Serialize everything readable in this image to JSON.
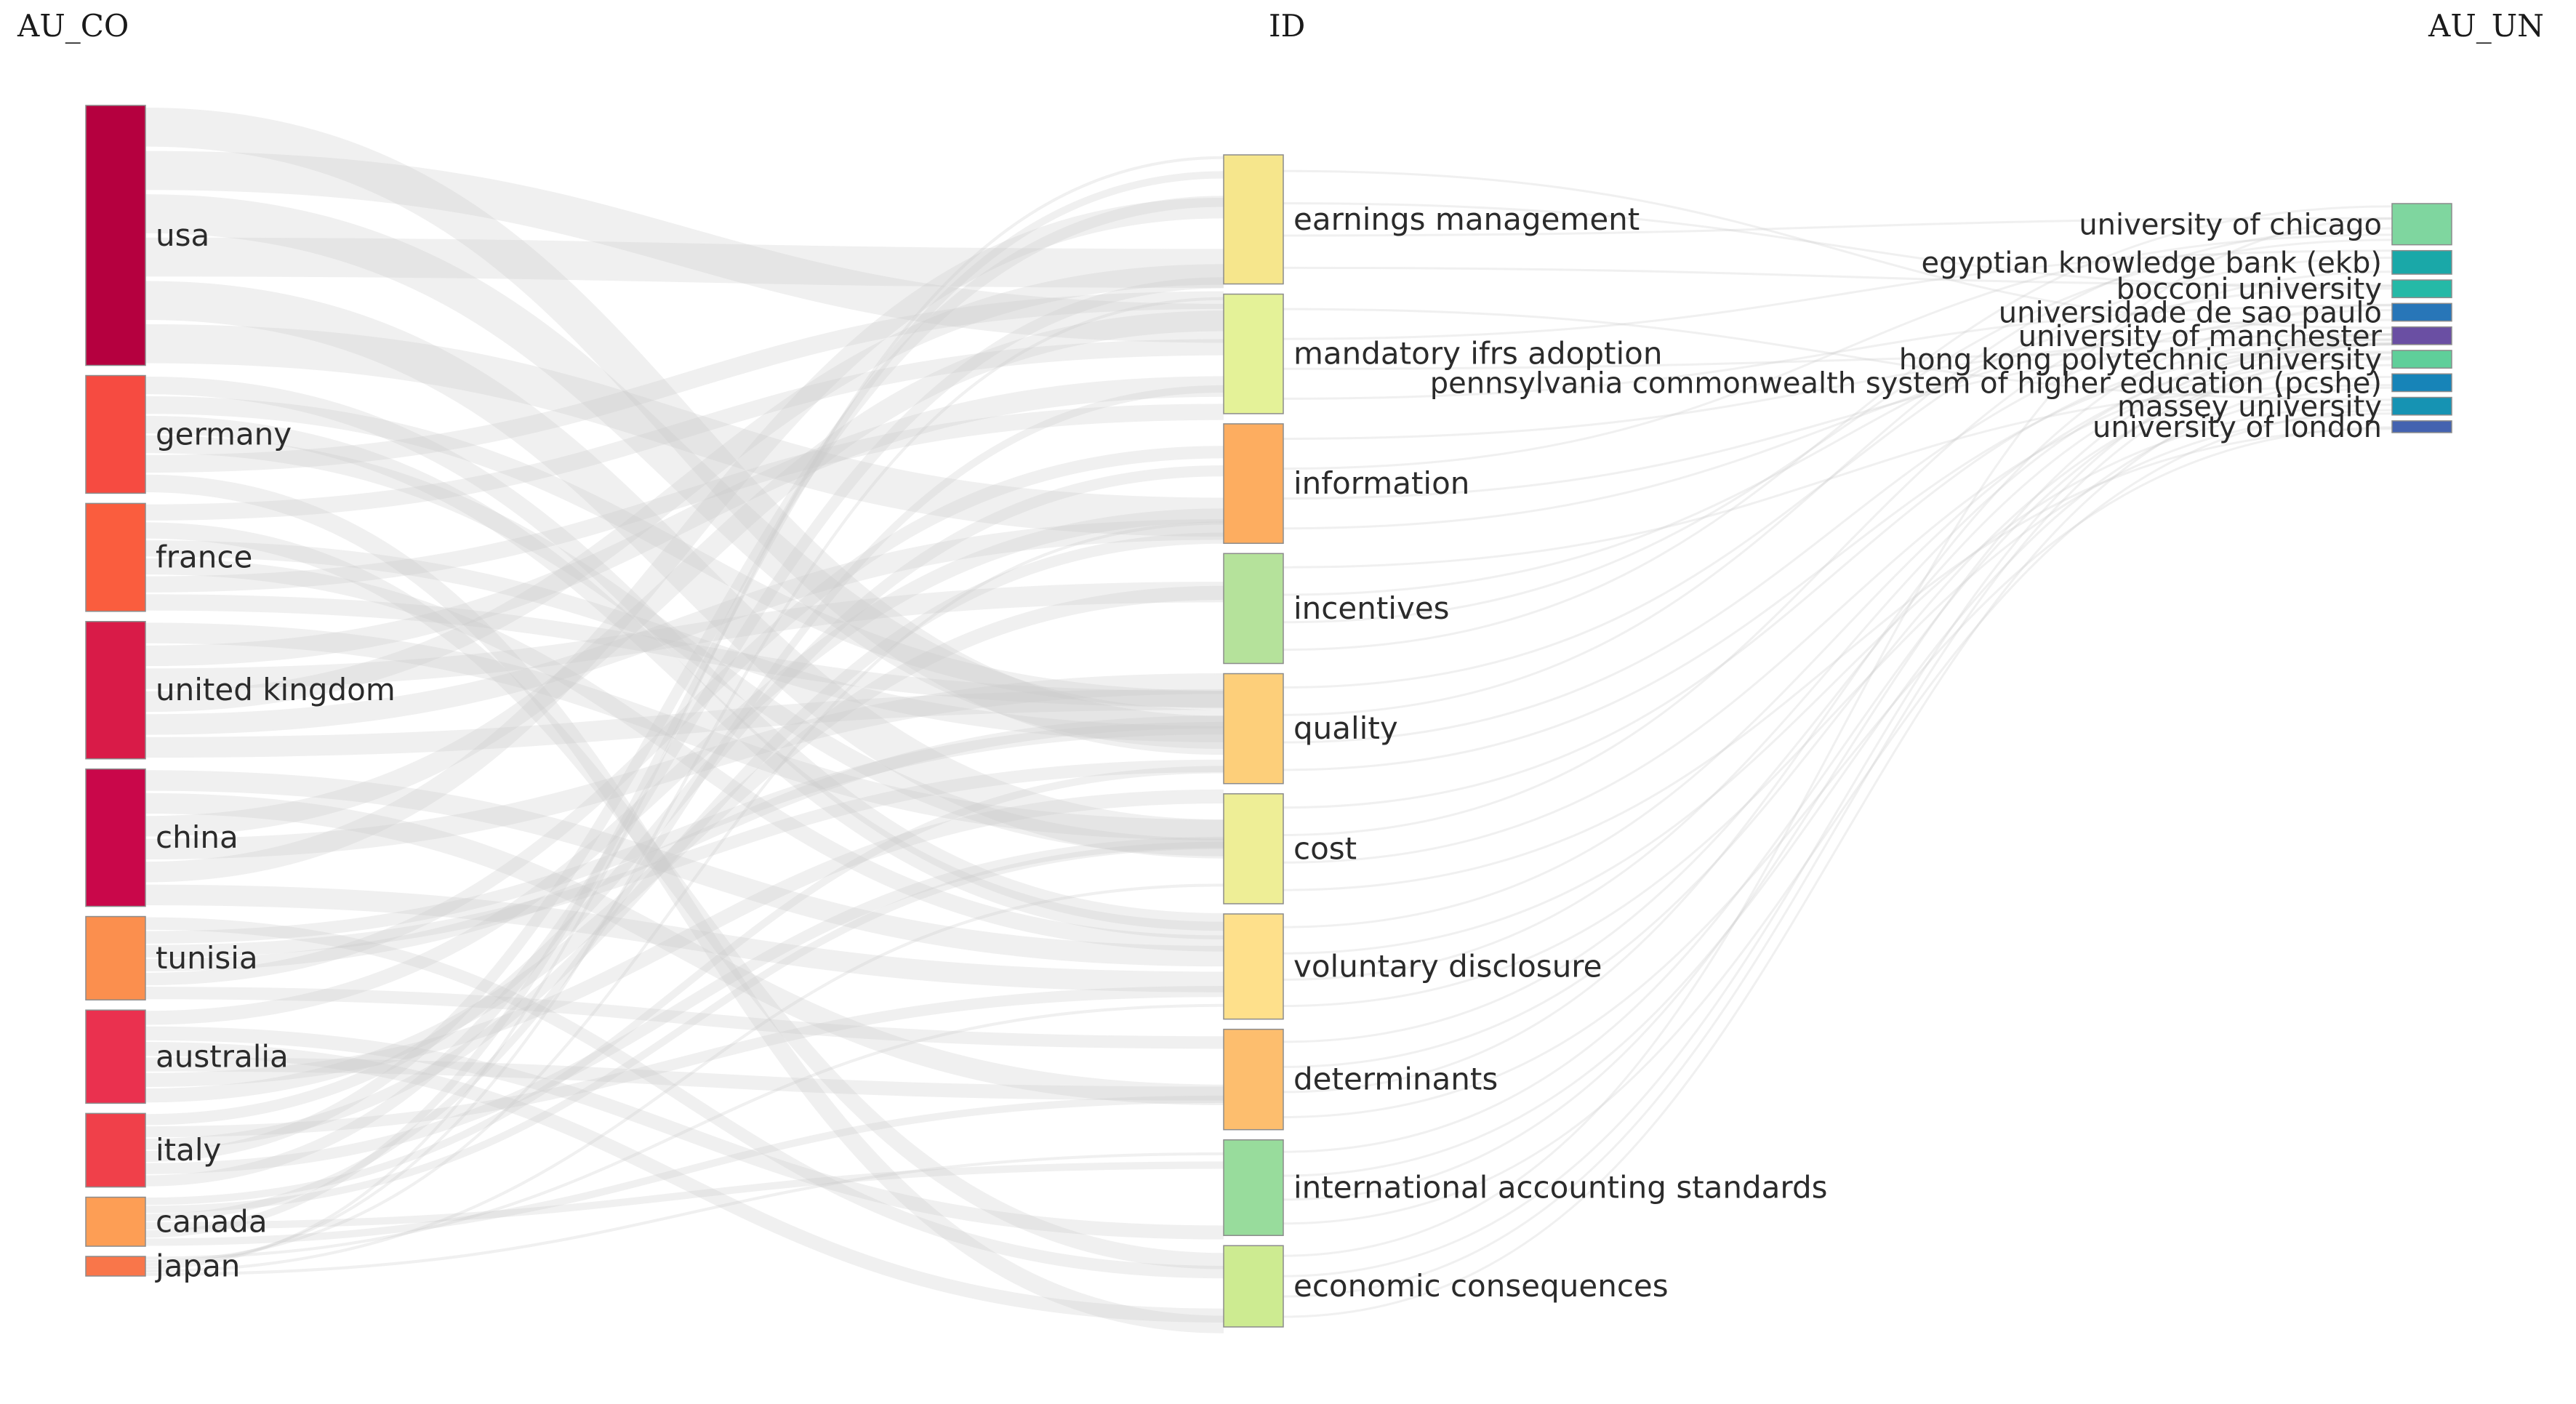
{
  "columns": [
    {
      "key": "AU_CO",
      "header": "AU_CO"
    },
    {
      "key": "ID",
      "header": "ID"
    },
    {
      "key": "AU_UN",
      "header": "AU_UN"
    }
  ],
  "nodes": {
    "AU_CO": [
      {
        "label": "usa",
        "value": 53,
        "color": "#b5003f"
      },
      {
        "label": "germany",
        "value": 24,
        "color": "#f64b41"
      },
      {
        "label": "france",
        "value": 22,
        "color": "#fa5d3e"
      },
      {
        "label": "united kingdom",
        "value": 28,
        "color": "#d91b48"
      },
      {
        "label": "china",
        "value": 28,
        "color": "#c9074a"
      },
      {
        "label": "tunisia",
        "value": 17,
        "color": "#fb8f4e"
      },
      {
        "label": "australia",
        "value": 19,
        "color": "#ea314f"
      },
      {
        "label": "italy",
        "value": 15,
        "color": "#f0404a"
      },
      {
        "label": "canada",
        "value": 10,
        "color": "#fd9e55"
      },
      {
        "label": "japan",
        "value": 4,
        "color": "#f9764a"
      }
    ],
    "ID": [
      {
        "label": "earnings management",
        "value": 27,
        "color": "#f6e68c"
      },
      {
        "label": "mandatory ifrs adoption",
        "value": 25,
        "color": "#e4f298"
      },
      {
        "label": "information",
        "value": 25,
        "color": "#fdad60"
      },
      {
        "label": "incentives",
        "value": 23,
        "color": "#b5e29b"
      },
      {
        "label": "quality",
        "value": 23,
        "color": "#fdcf7a"
      },
      {
        "label": "cost",
        "value": 23,
        "color": "#eeee96"
      },
      {
        "label": "voluntary disclosure",
        "value": 22,
        "color": "#fee08b"
      },
      {
        "label": "determinants",
        "value": 21,
        "color": "#fdbe6e"
      },
      {
        "label": "international accounting standards",
        "value": 20,
        "color": "#98dc9c"
      },
      {
        "label": "economic consequences",
        "value": 17,
        "color": "#cdeb91"
      }
    ],
    "AU_UN": [
      {
        "label": "university of chicago",
        "value": 7,
        "color": "#7fd69f"
      },
      {
        "label": "egyptian knowledge bank (ekb)",
        "value": 4,
        "color": "#1aa8a8"
      },
      {
        "label": "bocconi university",
        "value": 3,
        "color": "#25b9a7"
      },
      {
        "label": "universidade de sao paulo",
        "value": 3,
        "color": "#2876b8"
      },
      {
        "label": "university of manchester",
        "value": 3,
        "color": "#6a4fa3"
      },
      {
        "label": "hong kong polytechnic university",
        "value": 3,
        "color": "#5fcf9a"
      },
      {
        "label": "pennsylvania commonwealth system of higher education (pcshe)",
        "value": 3,
        "color": "#1784b8"
      },
      {
        "label": "massey university",
        "value": 3,
        "color": "#1693b3"
      },
      {
        "label": "university of london",
        "value": 2,
        "color": "#4463b0"
      }
    ]
  },
  "style": {
    "flow_color": "#c8c8c8",
    "node_border": "#8c8c8c"
  }
}
